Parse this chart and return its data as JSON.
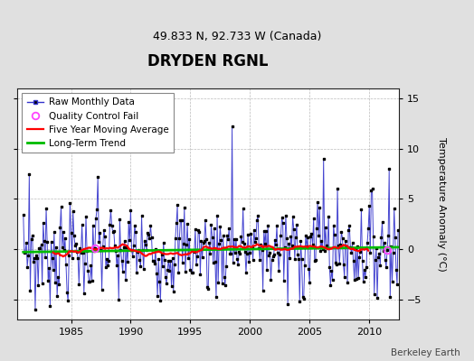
{
  "title": "DRYDEN RGNL",
  "subtitle": "49.833 N, 92.733 W (Canada)",
  "ylabel": "Temperature Anomaly (°C)",
  "watermark": "Berkeley Earth",
  "xlim": [
    1980.5,
    2012.5
  ],
  "ylim": [
    -7,
    16
  ],
  "yticks": [
    -5,
    0,
    5,
    10,
    15
  ],
  "xticks": [
    1985,
    1990,
    1995,
    2000,
    2005,
    2010
  ],
  "bg_color": "#e0e0e0",
  "plot_bg_color": "#ffffff",
  "line_color": "#3333cc",
  "marker_color": "#000000",
  "ma_color": "#ff0000",
  "trend_color": "#00bb00",
  "qc_color": "#ff44ff",
  "legend_labels": [
    "Raw Monthly Data",
    "Quality Control Fail",
    "Five Year Moving Average",
    "Long-Term Trend"
  ],
  "title_fontsize": 12,
  "subtitle_fontsize": 9,
  "tick_fontsize": 8,
  "legend_fontsize": 7.5
}
